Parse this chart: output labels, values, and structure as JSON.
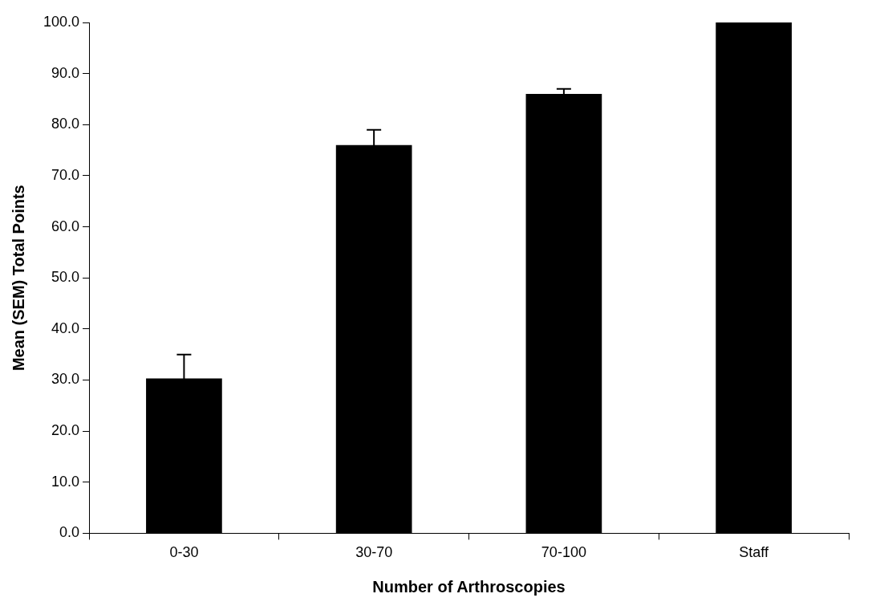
{
  "chart_data": {
    "type": "bar",
    "xlabel": "Number of Arthroscopies",
    "ylabel": "Mean (SEM) Total Points",
    "categories": [
      "0-30",
      "30-70",
      "70-100",
      "Staff"
    ],
    "values": [
      30.3,
      76,
      86,
      100
    ],
    "errors": [
      4.7,
      3,
      1,
      null
    ],
    "color": "#000000",
    "ylim": [
      0,
      100
    ],
    "yticks": [
      {
        "value": 0,
        "label": "0.0"
      },
      {
        "value": 10,
        "label": "10.0"
      },
      {
        "value": 20,
        "label": "20.0"
      },
      {
        "value": 30,
        "label": "30.0"
      },
      {
        "value": 40,
        "label": "40.0"
      },
      {
        "value": 50,
        "label": "50.0"
      },
      {
        "value": 60,
        "label": "60.0"
      },
      {
        "value": 70,
        "label": "70.0"
      },
      {
        "value": 80,
        "label": "80.0"
      },
      {
        "value": 90,
        "label": "90.0"
      },
      {
        "value": 100,
        "label": "100.0"
      }
    ],
    "grid": false,
    "legend": false
  }
}
